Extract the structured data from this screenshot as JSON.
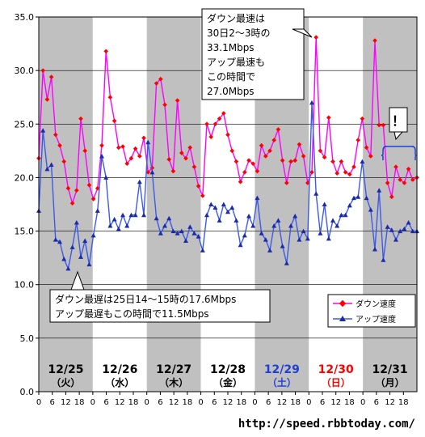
{
  "chart_data": {
    "type": "line",
    "ylim": [
      0,
      35
    ],
    "yticks": [
      "0.0",
      "5.0",
      "10.0",
      "15.0",
      "20.0",
      "25.0",
      "30.0",
      "35.0"
    ],
    "days": [
      {
        "date": "12/25",
        "dow": "（火）",
        "color": "#000000",
        "shade": "#c0c0c0"
      },
      {
        "date": "12/26",
        "dow": "（水）",
        "color": "#000000",
        "shade": "#ffffff"
      },
      {
        "date": "12/27",
        "dow": "（木）",
        "color": "#000000",
        "shade": "#c0c0c0"
      },
      {
        "date": "12/28",
        "dow": "（金）",
        "color": "#000000",
        "shade": "#ffffff"
      },
      {
        "date": "12/29",
        "dow": "（土）",
        "color": "#1f3fdc",
        "shade": "#c0c0c0"
      },
      {
        "date": "12/30",
        "dow": "（日）",
        "color": "#ff0000",
        "shade": "#ffffff"
      },
      {
        "date": "12/31",
        "dow": "（月）",
        "color": "#000000",
        "shade": "#c0c0c0"
      }
    ],
    "hour_ticks": [
      "0",
      "6",
      "12",
      "18"
    ],
    "series": [
      {
        "name": "ダウン速度",
        "color": "#ff00ff",
        "marker": "diamond",
        "values": [
          21.8,
          30.0,
          27.3,
          29.4,
          24.0,
          23.0,
          21.5,
          19.0,
          17.6,
          18.8,
          25.5,
          22.5,
          19.3,
          18.0,
          19.0,
          23.0,
          31.8,
          27.5,
          25.3,
          22.8,
          22.9,
          21.3,
          21.8,
          22.7,
          22.0,
          23.7,
          20.5,
          20.9,
          28.8,
          29.2,
          26.8,
          21.7,
          20.6,
          27.2,
          22.3,
          21.8,
          22.8,
          21.0,
          19.2,
          18.3,
          25.0,
          23.8,
          25.0,
          25.5,
          26.0,
          24.0,
          22.5,
          21.5,
          19.6,
          20.5,
          21.6,
          21.3,
          20.6,
          23.0,
          22.0,
          22.5,
          23.5,
          24.5,
          21.6,
          19.5,
          21.5,
          21.6,
          23.1,
          22.0,
          19.5,
          20.5,
          33.1,
          22.5,
          21.9,
          25.6,
          21.5,
          20.4,
          21.5,
          20.5,
          20.3,
          21.0,
          23.5,
          25.5,
          22.8,
          22.0,
          32.8,
          24.9,
          24.9,
          19.5,
          18.2,
          21.0,
          19.8,
          19.5,
          20.8,
          19.8,
          20.0
        ]
      },
      {
        "name": "アップ速度",
        "color": "#3c5ae6",
        "marker": "triangle",
        "values": [
          16.9,
          24.4,
          20.8,
          21.2,
          14.2,
          14.0,
          12.4,
          11.5,
          13.5,
          15.8,
          12.6,
          14.1,
          11.9,
          14.6,
          16.9,
          22.0,
          20.0,
          15.5,
          16.1,
          15.2,
          16.5,
          15.5,
          16.5,
          16.5,
          19.6,
          16.5,
          23.3,
          20.5,
          16.2,
          14.8,
          15.5,
          16.2,
          15.0,
          14.8,
          15.0,
          14.1,
          15.4,
          14.8,
          14.5,
          13.2,
          16.5,
          17.5,
          17.2,
          16.0,
          17.5,
          16.8,
          17.2,
          16.0,
          13.7,
          14.6,
          16.4,
          15.5,
          18.1,
          14.8,
          14.2,
          13.2,
          15.5,
          16.0,
          13.6,
          12.0,
          15.5,
          16.4,
          14.2,
          15.0,
          14.3,
          27.0,
          18.5,
          14.8,
          17.5,
          14.3,
          16.0,
          15.5,
          16.5,
          16.5,
          17.4,
          18.1,
          18.2,
          21.5,
          18.1,
          17.0,
          13.3,
          18.8,
          12.3,
          15.4,
          15.1,
          14.2,
          15.0,
          15.2,
          15.8,
          15.0,
          15.0
        ]
      }
    ],
    "annotations": {
      "peak": [
        "ダウン最速は",
        "30日2～3時の",
        "33.1Mbps",
        "アップ最速も",
        "この時間で",
        "27.0Mbps"
      ],
      "low": [
        "ダウン最遅は25日14～15時の17.6Mbps",
        "アップ最遅もこの時間で11.5Mbps"
      ],
      "exclaim": "！"
    },
    "legend_position": "bottom-right",
    "source": "http://speed.rbbtoday.com/"
  }
}
